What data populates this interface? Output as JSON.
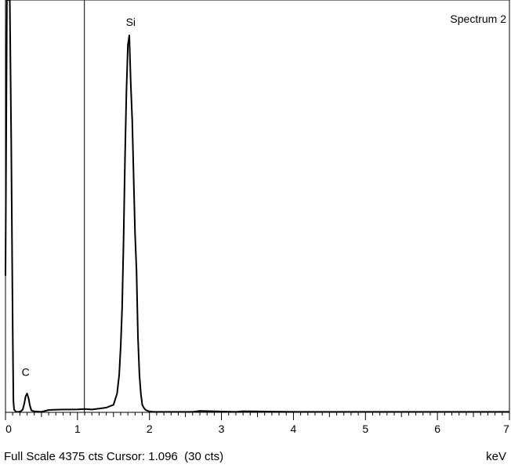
{
  "chart_data": {
    "type": "line",
    "title": "Spectrum 2",
    "xlabel": "keV",
    "xlim": [
      0,
      7
    ],
    "ylim": [
      0,
      4375
    ],
    "x_ticks": [
      "0",
      "1",
      "2",
      "3",
      "4",
      "5",
      "6",
      "7"
    ],
    "cursor_keV": 1.096,
    "peak_labels": [
      {
        "text": "Si",
        "x": 1.74,
        "y": 4000
      },
      {
        "text": "C",
        "x": 0.28,
        "y": 285
      }
    ],
    "series": [
      {
        "x": [
          0.0,
          0.02,
          0.04,
          0.06,
          0.08,
          0.1,
          0.11,
          0.12,
          0.14,
          0.16,
          0.18,
          0.2,
          0.22,
          0.24,
          0.26,
          0.28,
          0.3,
          0.32,
          0.34,
          0.36,
          0.4,
          0.5,
          0.6,
          0.7,
          0.8,
          0.9,
          1.0,
          1.1,
          1.2,
          1.3,
          1.4,
          1.5,
          1.55,
          1.58,
          1.6,
          1.62,
          1.64,
          1.66,
          1.68,
          1.7,
          1.72,
          1.74,
          1.76,
          1.78,
          1.8,
          1.82,
          1.84,
          1.86,
          1.88,
          1.9,
          1.92,
          1.94,
          1.96,
          1.98,
          2.0,
          2.05,
          2.2,
          2.6,
          2.7,
          3.2,
          3.3,
          4.0,
          5.0,
          6.0,
          7.0
        ],
        "y": [
          1450,
          4375,
          4375,
          4375,
          2900,
          900,
          120,
          30,
          10,
          5,
          5,
          8,
          15,
          30,
          90,
          170,
          200,
          150,
          70,
          20,
          10,
          5,
          25,
          28,
          30,
          30,
          32,
          35,
          30,
          40,
          50,
          80,
          200,
          400,
          700,
          1100,
          1800,
          2700,
          3400,
          3900,
          4000,
          3500,
          3100,
          2500,
          1900,
          1500,
          800,
          400,
          200,
          80,
          50,
          30,
          20,
          15,
          10,
          5,
          5,
          5,
          15,
          5,
          12,
          5,
          5,
          5,
          5
        ]
      }
    ]
  },
  "footer": {
    "left": "Full Scale 4375 cts Cursor: 1.096  (30 cts)",
    "right": "keV"
  }
}
